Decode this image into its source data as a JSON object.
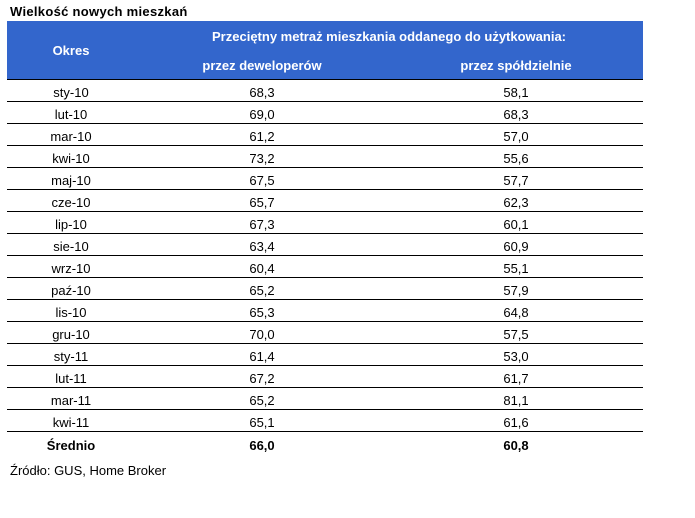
{
  "title": "Wielkość nowych mieszkań",
  "table": {
    "col_period": "Okres",
    "col_group": "Przeciętny metraż mieszkania oddanego do użytkowania:",
    "col_developers": "przez deweloperów",
    "col_cooperatives": "przez spółdzielnie",
    "rows": [
      {
        "period": "sty-10",
        "developers": "68,3",
        "cooperatives": "58,1"
      },
      {
        "period": "lut-10",
        "developers": "69,0",
        "cooperatives": "68,3"
      },
      {
        "period": "mar-10",
        "developers": "61,2",
        "cooperatives": "57,0"
      },
      {
        "period": "kwi-10",
        "developers": "73,2",
        "cooperatives": "55,6"
      },
      {
        "period": "maj-10",
        "developers": "67,5",
        "cooperatives": "57,7"
      },
      {
        "period": "cze-10",
        "developers": "65,7",
        "cooperatives": "62,3"
      },
      {
        "period": "lip-10",
        "developers": "67,3",
        "cooperatives": "60,1"
      },
      {
        "period": "sie-10",
        "developers": "63,4",
        "cooperatives": "60,9"
      },
      {
        "period": "wrz-10",
        "developers": "60,4",
        "cooperatives": "55,1"
      },
      {
        "period": "paź-10",
        "developers": "65,2",
        "cooperatives": "57,9"
      },
      {
        "period": "lis-10",
        "developers": "65,3",
        "cooperatives": "64,8"
      },
      {
        "period": "gru-10",
        "developers": "70,0",
        "cooperatives": "57,5"
      },
      {
        "period": "sty-11",
        "developers": "61,4",
        "cooperatives": "53,0"
      },
      {
        "period": "lut-11",
        "developers": "67,2",
        "cooperatives": "61,7"
      },
      {
        "period": "mar-11",
        "developers": "65,2",
        "cooperatives": "81,1"
      },
      {
        "period": "kwi-11",
        "developers": "65,1",
        "cooperatives": "61,6"
      }
    ],
    "average": {
      "period": "Średnio",
      "developers": "66,0",
      "cooperatives": "60,8"
    }
  },
  "source": "Źródło: GUS, Home Broker",
  "colors": {
    "header_bg": "#3366cc",
    "header_text": "#ffffff"
  }
}
